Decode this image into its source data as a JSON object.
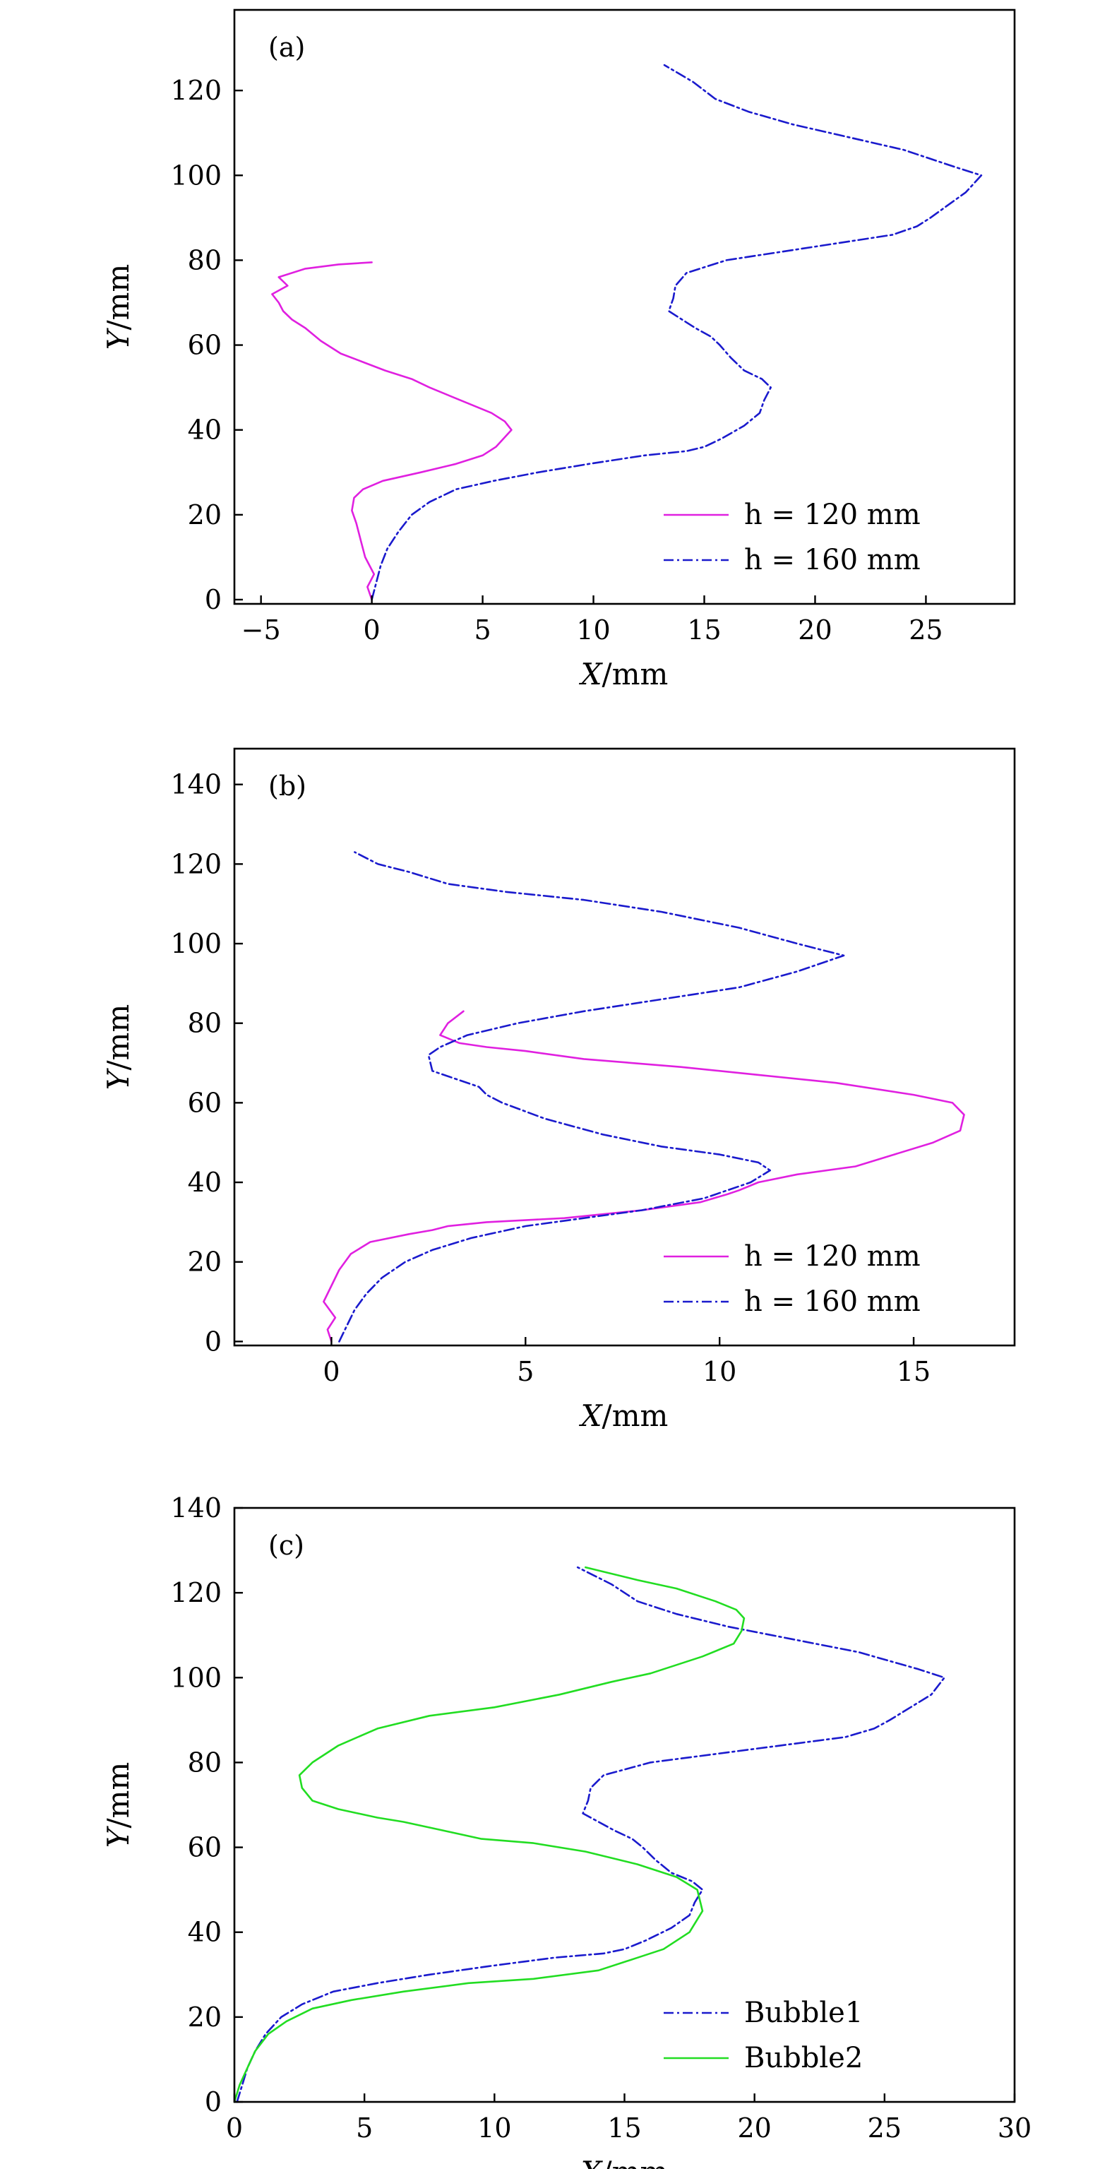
{
  "chart_data": [
    {
      "type": "line",
      "panel": "(a)",
      "xlabel": {
        "var": "X",
        "unit": "/mm"
      },
      "ylabel": {
        "var": "Y",
        "unit": "/mm"
      },
      "xlim": [
        -6.2,
        29
      ],
      "ylim": [
        -1,
        139
      ],
      "xticks": [
        -5,
        0,
        5,
        10,
        15,
        20,
        25
      ],
      "xtick_labels": [
        "−5",
        "0",
        "5",
        "10",
        "15",
        "20",
        "25"
      ],
      "yticks": [
        0,
        20,
        40,
        60,
        80,
        100,
        120
      ],
      "grid": false,
      "legend_position": "lower-right",
      "series": [
        {
          "name": "h = 120 mm",
          "legend": {
            "var": "h",
            "rest": " = 120 mm"
          },
          "color": "#e020e0",
          "dash": "solid",
          "x": [
            0.0,
            -0.2,
            0.1,
            -0.3,
            -0.5,
            -0.7,
            -0.9,
            -0.8,
            -0.4,
            0.5,
            2.2,
            3.8,
            5.0,
            5.6,
            6.3,
            6.0,
            5.4,
            4.0,
            2.6,
            1.8,
            0.6,
            -0.4,
            -1.4,
            -2.3,
            -3.0,
            -3.6,
            -4.0,
            -4.2,
            -4.5,
            -3.8,
            -4.2,
            -3.0,
            -1.5,
            0.0
          ],
          "y": [
            0,
            3,
            6,
            10,
            14,
            18,
            21,
            24,
            26,
            28,
            30,
            32,
            34,
            36,
            40,
            42,
            44,
            47,
            50,
            52,
            54,
            56,
            58,
            61,
            64,
            66,
            68,
            70,
            72,
            74,
            76,
            78,
            79,
            79.5
          ]
        },
        {
          "name": "h = 160 mm",
          "legend": {
            "var": "h",
            "rest": " = 160 mm"
          },
          "color": "#1a1acd",
          "dash": "dashdot",
          "x": [
            0.0,
            0.2,
            0.4,
            0.7,
            1.2,
            1.8,
            2.6,
            3.8,
            5.5,
            7.5,
            9.8,
            12.3,
            14.2,
            15.0,
            15.8,
            16.8,
            17.5,
            17.7,
            18.0,
            17.6,
            16.8,
            16.2,
            15.7,
            15.3,
            14.6,
            14.0,
            13.4,
            13.6,
            13.7,
            14.2,
            16.0,
            18.5,
            21.0,
            23.5,
            24.6,
            25.2,
            26.0,
            26.8,
            27.5,
            26.3,
            24.0,
            21.5,
            19.0,
            17.0,
            15.5,
            14.5,
            13.2
          ],
          "y": [
            0,
            4,
            8,
            12,
            16,
            20,
            23,
            26,
            28,
            30,
            32,
            34,
            35,
            36,
            38,
            41,
            44,
            47,
            50,
            52,
            54,
            57,
            60,
            62,
            64,
            66,
            68,
            71,
            74,
            77,
            80,
            82,
            84,
            86,
            88,
            90,
            93,
            96,
            100,
            102,
            106,
            109,
            112,
            115,
            118,
            122,
            126
          ]
        }
      ]
    },
    {
      "type": "line",
      "panel": "(b)",
      "xlabel": {
        "var": "X",
        "unit": "/mm"
      },
      "ylabel": {
        "var": "Y",
        "unit": "/mm"
      },
      "xlim": [
        -2.5,
        17.6
      ],
      "ylim": [
        -1,
        149
      ],
      "xticks": [
        0,
        5,
        10,
        15
      ],
      "xtick_labels": [
        "0",
        "5",
        "10",
        "15"
      ],
      "yticks": [
        0,
        20,
        40,
        60,
        80,
        100,
        120,
        140
      ],
      "grid": false,
      "legend_position": "lower-right",
      "series": [
        {
          "name": "h = 120 mm",
          "legend": {
            "var": "h",
            "rest": " = 120 mm"
          },
          "color": "#e020e0",
          "dash": "solid",
          "x": [
            0.0,
            -0.1,
            0.1,
            -0.2,
            0.0,
            0.2,
            0.5,
            1.0,
            2.0,
            2.6,
            3.0,
            4.0,
            6.0,
            8.0,
            9.5,
            10.2,
            10.5,
            11.0,
            12.0,
            13.5,
            14.5,
            15.5,
            16.2,
            16.3,
            16.0,
            15.0,
            13.0,
            11.0,
            9.0,
            6.5,
            5.0,
            4.0,
            3.3,
            2.8,
            3.0,
            3.4
          ],
          "y": [
            0,
            3,
            6,
            10,
            14,
            18,
            22,
            25,
            27,
            28,
            29,
            30,
            31,
            33,
            35,
            37,
            38,
            40,
            42,
            44,
            47,
            50,
            53,
            57,
            60,
            62,
            65,
            67,
            69,
            71,
            73,
            74,
            75,
            77,
            80,
            83
          ]
        },
        {
          "name": "h = 160 mm",
          "legend": {
            "var": "h",
            "rest": " = 160 mm"
          },
          "color": "#1a1acd",
          "dash": "dashdot",
          "x": [
            0.2,
            0.4,
            0.6,
            0.9,
            1.3,
            1.9,
            2.6,
            3.6,
            5.0,
            6.5,
            8.0,
            9.6,
            10.8,
            11.3,
            11.0,
            10.0,
            8.5,
            7.0,
            5.5,
            4.4,
            4.0,
            3.8,
            3.2,
            2.6,
            2.5,
            2.8,
            3.5,
            4.8,
            6.5,
            8.5,
            10.5,
            12.0,
            13.2,
            12.8,
            12.0,
            10.5,
            8.5,
            6.5,
            4.5,
            3.0,
            2.0,
            1.2,
            0.6
          ],
          "y": [
            0,
            4,
            8,
            12,
            16,
            20,
            23,
            26,
            29,
            31,
            33,
            36,
            40,
            43,
            45,
            47,
            49,
            52,
            56,
            60,
            62,
            64,
            66,
            68,
            72,
            74,
            77,
            80,
            83,
            86,
            89,
            93,
            97,
            98,
            100,
            104,
            108,
            111,
            113,
            115,
            118,
            120,
            123
          ]
        }
      ]
    },
    {
      "type": "line",
      "panel": "(c)",
      "xlabel": {
        "var": "X",
        "unit": "/mm"
      },
      "ylabel": {
        "var": "Y",
        "unit": "/mm"
      },
      "xlim": [
        0,
        30
      ],
      "ylim": [
        0,
        140
      ],
      "xticks": [
        0,
        5,
        10,
        15,
        20,
        25,
        30
      ],
      "xtick_labels": [
        "0",
        "5",
        "10",
        "15",
        "20",
        "25",
        "30"
      ],
      "yticks": [
        0,
        20,
        40,
        60,
        80,
        100,
        120,
        140
      ],
      "grid": false,
      "legend_position": "lower-right",
      "series": [
        {
          "name": "Bubble1",
          "legend": {
            "var": "",
            "rest": "Bubble1"
          },
          "color": "#1a1acd",
          "dash": "dashdot",
          "x": [
            0.1,
            0.3,
            0.5,
            0.8,
            1.2,
            1.8,
            2.6,
            3.8,
            5.5,
            7.5,
            9.8,
            12.3,
            14.2,
            15.0,
            15.8,
            16.8,
            17.5,
            17.7,
            18.0,
            17.6,
            16.8,
            16.2,
            15.7,
            15.3,
            14.6,
            14.0,
            13.4,
            13.6,
            13.7,
            14.2,
            16.0,
            18.5,
            21.0,
            23.5,
            24.6,
            25.2,
            26.0,
            26.8,
            27.3,
            26.3,
            24.0,
            21.5,
            19.0,
            17.0,
            15.5,
            14.5,
            13.2
          ],
          "y": [
            0,
            4,
            8,
            12,
            16,
            20,
            23,
            26,
            28,
            30,
            32,
            34,
            35,
            36,
            38,
            41,
            44,
            47,
            50,
            52,
            54,
            57,
            60,
            62,
            64,
            66,
            68,
            71,
            74,
            77,
            80,
            82,
            84,
            86,
            88,
            90,
            93,
            96,
            100,
            102,
            106,
            109,
            112,
            115,
            118,
            122,
            126
          ]
        },
        {
          "name": "Bubble2",
          "legend": {
            "var": "",
            "rest": "Bubble2"
          },
          "color": "#22dd22",
          "dash": "solid",
          "x": [
            0.0,
            0.2,
            0.5,
            0.8,
            1.3,
            2.0,
            3.0,
            4.5,
            6.5,
            9.0,
            11.5,
            14.0,
            15.5,
            16.5,
            17.5,
            18.0,
            17.8,
            17.0,
            15.5,
            13.5,
            11.5,
            9.5,
            8.0,
            6.5,
            5.5,
            4.0,
            3.0,
            2.6,
            2.5,
            3.0,
            4.0,
            5.5,
            7.5,
            10.0,
            12.5,
            14.5,
            16.0,
            17.0,
            18.0,
            19.2,
            19.5,
            19.6,
            19.3,
            18.5,
            17.0,
            15.5,
            13.5
          ],
          "y": [
            0,
            4,
            8,
            12,
            16,
            19,
            22,
            24,
            26,
            28,
            29,
            31,
            34,
            36,
            40,
            45,
            50,
            53,
            56,
            59,
            61,
            62,
            64,
            66,
            67,
            69,
            71,
            74,
            77,
            80,
            84,
            88,
            91,
            93,
            96,
            99,
            101,
            103,
            105,
            108,
            111,
            114,
            116,
            118,
            121,
            123,
            126
          ]
        }
      ]
    }
  ]
}
